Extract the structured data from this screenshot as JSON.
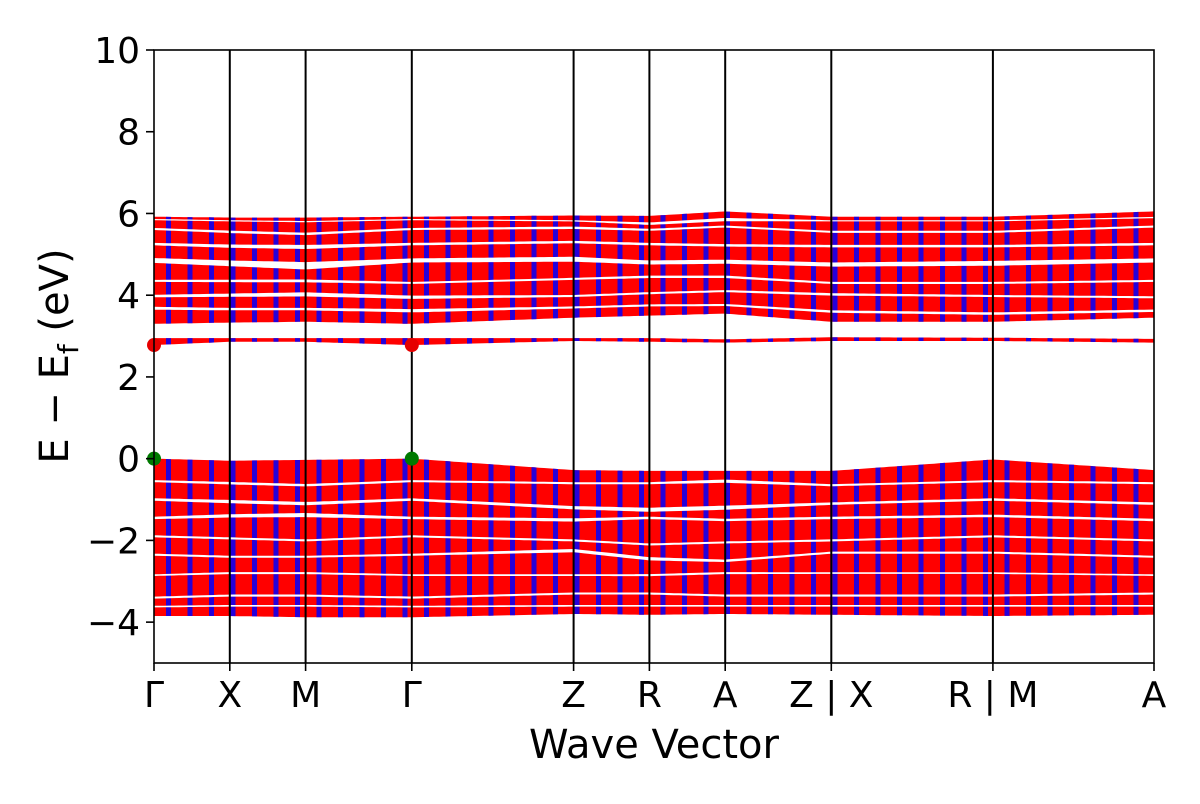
{
  "chart_data": {
    "type": "line",
    "title": "",
    "xlabel": "Wave Vector",
    "ylabel": {
      "main": "E − E",
      "subscript": "f",
      "unit": " (eV)"
    },
    "ylim": [
      -5,
      10
    ],
    "yticks": [
      -4,
      -2,
      0,
      2,
      4,
      6,
      8,
      10
    ],
    "ytick_labels": [
      "−4",
      "−2",
      "0",
      "2",
      "4",
      "6",
      "8",
      "10"
    ],
    "xlim": [
      0,
      1
    ],
    "kpoint_positions": [
      0.0,
      0.0758,
      0.1516,
      0.2578,
      0.4196,
      0.4954,
      0.5712,
      0.6773,
      0.8389,
      1.0
    ],
    "kpoint_labels": [
      "Γ",
      "X",
      "M",
      "Γ",
      "Z",
      "R",
      "A",
      "Z | X",
      "R | M",
      "A"
    ],
    "gridlines": "vertical at high-symmetry points",
    "band_edges": {
      "valence_max": [
        {
          "x": 0.0,
          "energy": 0.0,
          "color": "#007a00"
        },
        {
          "x": 0.2578,
          "energy": 0.0,
          "color": "#007a00"
        }
      ],
      "conduction_min": [
        {
          "x": 0.0,
          "energy": 2.78,
          "color": "#e60000"
        },
        {
          "x": 0.2578,
          "energy": 2.78,
          "color": "#e60000"
        }
      ]
    },
    "series": [
      {
        "name": "conduction-low",
        "color": "#ff0000",
        "stripe_color": "#0000ff",
        "segments": [
          {
            "x0": 0.0,
            "x1": 1.0,
            "low": [
              2.78,
              2.86,
              2.86,
              2.78,
              2.88,
              2.86,
              2.84,
              2.88,
              2.88,
              2.84
            ],
            "high": [
              2.95,
              2.95,
              2.95,
              2.95,
              2.95,
              2.95,
              2.92,
              2.97,
              2.96,
              2.93
            ]
          }
        ]
      },
      {
        "name": "conduction-high",
        "color": "#ff0000",
        "stripe_color": "#0000ff",
        "low": [
          3.3,
          3.33,
          3.35,
          3.3,
          3.45,
          3.5,
          3.55,
          3.35,
          3.35,
          3.45
        ],
        "high": [
          5.92,
          5.9,
          5.9,
          5.92,
          5.95,
          5.94,
          6.05,
          5.92,
          5.92,
          6.05
        ],
        "gaps": [
          {
            "center": [
              3.68,
              3.66,
              3.66,
              3.62,
              3.7,
              3.75,
              3.76,
              3.6,
              3.55,
              3.62
            ],
            "width": [
              0.07,
              0.06,
              0.06,
              0.08,
              0.05,
              0.05,
              0.05,
              0.06,
              0.06,
              0.06
            ]
          },
          {
            "center": [
              3.98,
              4.0,
              4.02,
              3.95,
              3.98,
              4.05,
              4.1,
              4.02,
              3.98,
              3.95
            ],
            "width": [
              0.06,
              0.08,
              0.1,
              0.08,
              0.05,
              0.05,
              0.05,
              0.06,
              0.05,
              0.05
            ]
          },
          {
            "center": [
              4.35,
              4.35,
              4.35,
              4.3,
              4.4,
              4.45,
              4.45,
              4.3,
              4.3,
              4.35
            ],
            "width": [
              0.05,
              0.06,
              0.07,
              0.05,
              0.05,
              0.06,
              0.06,
              0.05,
              0.05,
              0.05
            ]
          },
          {
            "center": [
              4.85,
              4.78,
              4.72,
              4.85,
              4.88,
              4.8,
              4.82,
              4.75,
              4.78,
              4.85
            ],
            "width": [
              0.12,
              0.14,
              0.18,
              0.1,
              0.12,
              0.1,
              0.1,
              0.1,
              0.12,
              0.1
            ]
          },
          {
            "center": [
              5.25,
              5.2,
              5.18,
              5.25,
              5.3,
              5.25,
              5.22,
              5.2,
              5.2,
              5.25
            ],
            "width": [
              0.06,
              0.08,
              0.1,
              0.06,
              0.06,
              0.06,
              0.06,
              0.06,
              0.06,
              0.06
            ]
          },
          {
            "center": [
              5.62,
              5.55,
              5.5,
              5.62,
              5.65,
              5.6,
              5.68,
              5.55,
              5.55,
              5.68
            ],
            "width": [
              0.05,
              0.06,
              0.06,
              0.05,
              0.06,
              0.05,
              0.05,
              0.05,
              0.05,
              0.05
            ]
          },
          {
            "center": [
              5.85,
              5.82,
              5.8,
              5.85,
              5.82,
              5.75,
              5.85,
              5.82,
              5.82,
              5.9
            ],
            "width": [
              0.03,
              0.03,
              0.03,
              0.03,
              0.03,
              0.06,
              0.08,
              0.03,
              0.03,
              0.03
            ]
          }
        ]
      },
      {
        "name": "valence",
        "color": "#ff0000",
        "stripe_color": "#0000ff",
        "low": [
          -3.85,
          -3.85,
          -3.88,
          -3.88,
          -3.8,
          -3.82,
          -3.8,
          -3.82,
          -3.85,
          -3.82
        ],
        "high": [
          0.0,
          -0.05,
          -0.03,
          0.0,
          -0.28,
          -0.3,
          -0.3,
          -0.3,
          -0.02,
          -0.28
        ],
        "gaps": [
          {
            "center": [
              -0.55,
              -0.6,
              -0.65,
              -0.55,
              -0.6,
              -0.6,
              -0.55,
              -0.65,
              -0.55,
              -0.6
            ],
            "width": [
              0.05,
              0.06,
              0.06,
              0.05,
              0.05,
              0.05,
              0.08,
              0.05,
              0.05,
              0.05
            ]
          },
          {
            "center": [
              -1.0,
              -1.05,
              -1.1,
              -1.0,
              -1.2,
              -1.25,
              -1.2,
              -1.1,
              -1.0,
              -1.1
            ],
            "width": [
              0.06,
              0.08,
              0.08,
              0.06,
              0.08,
              0.1,
              0.1,
              0.06,
              0.06,
              0.06
            ]
          },
          {
            "center": [
              -1.45,
              -1.4,
              -1.38,
              -1.45,
              -1.5,
              -1.45,
              -1.5,
              -1.45,
              -1.4,
              -1.5
            ],
            "width": [
              0.06,
              0.08,
              0.1,
              0.06,
              0.08,
              0.06,
              0.06,
              0.06,
              0.06,
              0.06
            ]
          },
          {
            "center": [
              -1.9,
              -1.95,
              -2.0,
              -1.9,
              -2.0,
              -2.1,
              -2.05,
              -2.0,
              -1.9,
              -2.0
            ],
            "width": [
              0.05,
              0.05,
              0.05,
              0.05,
              0.05,
              0.05,
              0.05,
              0.05,
              0.05,
              0.05
            ]
          },
          {
            "center": [
              -2.35,
              -2.4,
              -2.4,
              -2.35,
              -2.25,
              -2.45,
              -2.5,
              -2.3,
              -2.3,
              -2.4
            ],
            "width": [
              0.05,
              0.05,
              0.05,
              0.05,
              0.08,
              0.08,
              0.06,
              0.05,
              0.05,
              0.05
            ]
          },
          {
            "center": [
              -2.85,
              -2.8,
              -2.8,
              -2.85,
              -2.85,
              -2.85,
              -2.8,
              -2.8,
              -2.8,
              -2.85
            ],
            "width": [
              0.04,
              0.05,
              0.05,
              0.04,
              0.04,
              0.05,
              0.05,
              0.04,
              0.04,
              0.04
            ]
          },
          {
            "center": [
              -3.4,
              -3.35,
              -3.35,
              -3.4,
              -3.3,
              -3.3,
              -3.35,
              -3.35,
              -3.35,
              -3.3
            ],
            "width": [
              0.05,
              0.05,
              0.05,
              0.05,
              0.05,
              0.05,
              0.05,
              0.05,
              0.05,
              0.05
            ]
          },
          {
            "center": [
              -3.62,
              -3.6,
              -3.6,
              -3.62,
              -3.6,
              -3.6,
              -3.6,
              -3.6,
              -3.6,
              -3.6
            ],
            "width": [
              0.04,
              0.04,
              0.04,
              0.04,
              0.04,
              0.04,
              0.04,
              0.04,
              0.04,
              0.04
            ]
          }
        ]
      }
    ]
  }
}
